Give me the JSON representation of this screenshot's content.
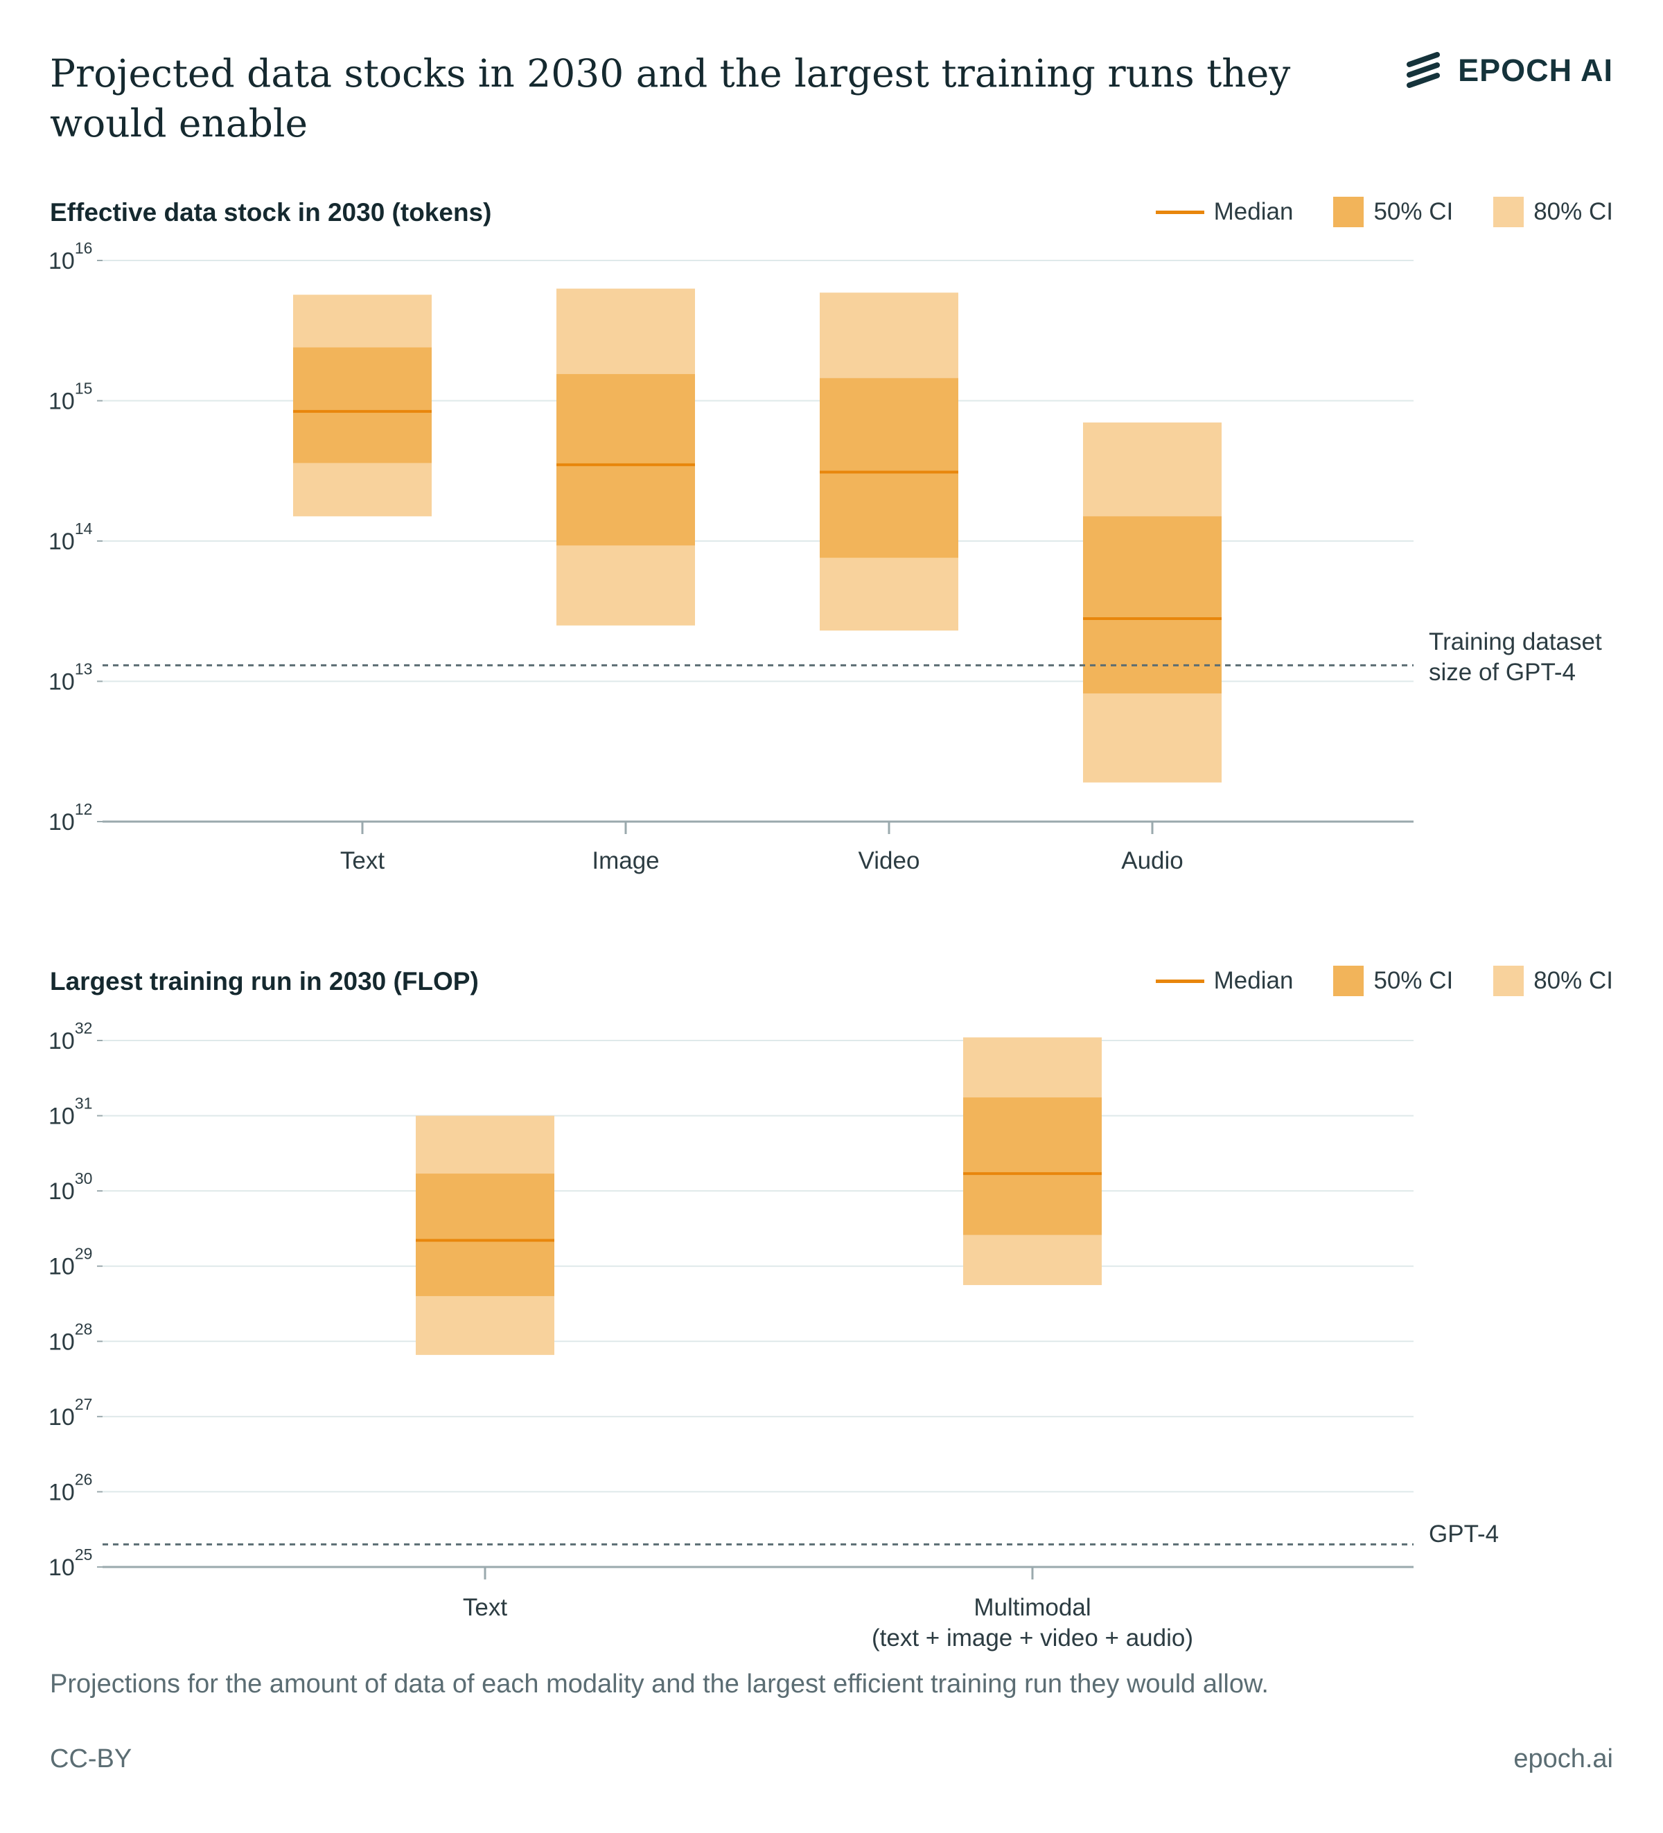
{
  "header": {
    "title": "Projected data stocks in 2030 and the largest training runs they would enable",
    "logo_text": "EPOCH AI"
  },
  "legend": {
    "median": "Median",
    "ci50": "50% CI",
    "ci80": "80% CI"
  },
  "colors": {
    "median": "#e8860c",
    "ci50": "#f2b45a",
    "ci80": "#f8d29c",
    "grid": "#dfe9ea",
    "axis": "#9aa9ad",
    "ref": "#5b6d73"
  },
  "chart_data": [
    {
      "type": "bar",
      "subtype": "interval (box) chart, log y-axis",
      "title": "Effective data stock in 2030 (tokens)",
      "y_scale": "log",
      "ylim": [
        1000000000000.0,
        1e+16
      ],
      "y_ticks": [
        {
          "base": "10",
          "exp": "12",
          "value": 1000000000000.0
        },
        {
          "base": "10",
          "exp": "13",
          "value": 10000000000000.0
        },
        {
          "base": "10",
          "exp": "14",
          "value": 100000000000000.0
        },
        {
          "base": "10",
          "exp": "15",
          "value": 1000000000000000.0
        },
        {
          "base": "10",
          "exp": "16",
          "value": 1e+16
        }
      ],
      "categories": [
        "Text",
        "Image",
        "Video",
        "Audio"
      ],
      "median": [
        840000000000000.0,
        350000000000000.0,
        310000000000000.0,
        28000000000000.0
      ],
      "ci50_low": [
        360000000000000.0,
        93000000000000.0,
        76000000000000.0,
        8200000000000.0
      ],
      "ci50_high": [
        2400000000000000.0,
        1550000000000000.0,
        1450000000000000.0,
        150000000000000.0
      ],
      "ci80_low": [
        150000000000000.0,
        25000000000000.0,
        23000000000000.0,
        1900000000000.0
      ],
      "ci80_high": [
        5700000000000000.0,
        6300000000000000.0,
        5900000000000000.0,
        700000000000000.0
      ],
      "reference_line": {
        "value": 13000000000000.0,
        "label_lines": [
          "Training dataset",
          "size of GPT-4"
        ]
      },
      "legend_position": "top-right",
      "grid": true
    },
    {
      "type": "bar",
      "subtype": "interval (box) chart, log y-axis",
      "title": "Largest training run in 2030 (FLOP)",
      "y_scale": "log",
      "ylim": [
        1e+25,
        1e+32
      ],
      "y_ticks": [
        {
          "base": "10",
          "exp": "25",
          "value": 1e+25
        },
        {
          "base": "10",
          "exp": "26",
          "value": 1e+26
        },
        {
          "base": "10",
          "exp": "27",
          "value": 1e+27
        },
        {
          "base": "10",
          "exp": "28",
          "value": 1e+28
        },
        {
          "base": "10",
          "exp": "29",
          "value": 1e+29
        },
        {
          "base": "10",
          "exp": "30",
          "value": 1e+30
        },
        {
          "base": "10",
          "exp": "31",
          "value": 1e+31
        },
        {
          "base": "10",
          "exp": "32",
          "value": 1e+32
        }
      ],
      "categories": [
        {
          "lines": [
            "Text"
          ]
        },
        {
          "lines": [
            "Multimodal",
            "(text + image + video + audio)"
          ]
        }
      ],
      "median": [
        2.2e+29,
        1.7e+30
      ],
      "ci50_low": [
        4e+28,
        2.6e+29
      ],
      "ci50_high": [
        1.7e+30,
        1.75e+31
      ],
      "ci80_low": [
        6.6e+27,
        5.6e+28
      ],
      "ci80_high": [
        1e+31,
        1.1e+32
      ],
      "reference_line": {
        "value": 2e+25,
        "label_lines": [
          "GPT-4"
        ]
      },
      "legend_position": "top-right",
      "grid": true
    }
  ],
  "footer": {
    "caption": "Projections for the amount of data of each modality and the largest efficient training run they would allow.",
    "license": "CC-BY",
    "site": "epoch.ai"
  }
}
